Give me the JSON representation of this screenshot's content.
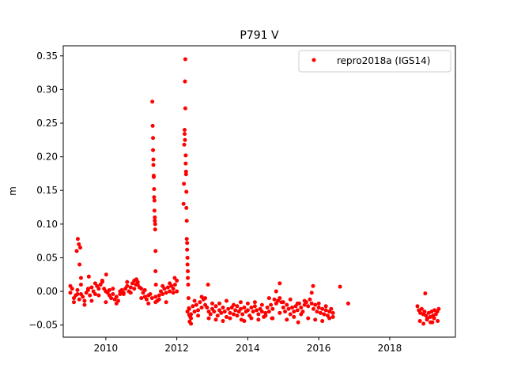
{
  "chart_data": {
    "type": "scatter",
    "title": "P791 V",
    "xlabel": "",
    "ylabel": "m",
    "xlim": [
      2008.8,
      2019.85
    ],
    "ylim": [
      -0.068,
      0.365
    ],
    "xticks": [
      2010,
      2012,
      2014,
      2016,
      2018
    ],
    "xtick_labels": [
      "2010",
      "2012",
      "2014",
      "2016",
      "2018"
    ],
    "yticks": [
      -0.05,
      0.0,
      0.05,
      0.1,
      0.15,
      0.2,
      0.25,
      0.3,
      0.35
    ],
    "ytick_labels": [
      "−0.05",
      "0.00",
      "0.05",
      "0.10",
      "0.15",
      "0.20",
      "0.25",
      "0.30",
      "0.35"
    ],
    "grid": false,
    "legend_position": "top-right",
    "series": [
      {
        "name": "repro2018a (IGS14)",
        "color": "#ff0000",
        "marker": "circle",
        "x": [
          2009.0,
          2009.05,
          2009.1,
          2009.15,
          2009.2,
          2009.25,
          2009.3,
          2009.35,
          2009.4,
          2009.45,
          2009.5,
          2009.55,
          2009.6,
          2009.65,
          2009.7,
          2009.75,
          2009.8,
          2009.85,
          2009.9,
          2009.95,
          2010.0,
          2010.05,
          2010.1,
          2010.15,
          2010.2,
          2010.25,
          2010.3,
          2010.35,
          2010.4,
          2010.45,
          2010.5,
          2010.55,
          2010.6,
          2010.65,
          2010.7,
          2010.75,
          2010.8,
          2010.85,
          2010.9,
          2010.95,
          2011.0,
          2011.05,
          2011.1,
          2011.15,
          2011.2,
          2011.25,
          2011.3,
          2011.4,
          2011.45,
          2011.5,
          2011.55,
          2011.6,
          2011.65,
          2011.7,
          2011.75,
          2011.8,
          2011.85,
          2011.9,
          2011.95,
          2012.0,
          2012.3,
          2012.35,
          2012.4,
          2012.45,
          2012.5,
          2012.55,
          2012.6,
          2012.65,
          2012.7,
          2012.75,
          2012.8,
          2012.85,
          2012.9,
          2012.95,
          2013.0,
          2013.05,
          2013.1,
          2013.15,
          2013.2,
          2013.25,
          2013.3,
          2013.35,
          2013.4,
          2013.45,
          2013.5,
          2013.55,
          2013.6,
          2013.65,
          2013.7,
          2013.75,
          2013.8,
          2013.85,
          2013.9,
          2013.95,
          2014.0,
          2014.05,
          2014.1,
          2014.15,
          2014.2,
          2014.25,
          2014.3,
          2014.35,
          2014.4,
          2014.45,
          2014.5,
          2014.55,
          2014.6,
          2014.65,
          2014.7,
          2014.75,
          2014.8,
          2014.85,
          2014.9,
          2014.95,
          2015.0,
          2015.05,
          2015.1,
          2015.15,
          2015.2,
          2015.25,
          2015.3,
          2015.35,
          2015.4,
          2015.45,
          2015.5,
          2015.55,
          2015.6,
          2015.65,
          2015.7,
          2015.75,
          2015.8,
          2015.85,
          2015.9,
          2015.95,
          2016.0,
          2016.05,
          2016.1,
          2016.15,
          2016.2,
          2016.25,
          2016.3,
          2016.35,
          2016.4,
          2016.83,
          2018.78,
          2018.82,
          2018.86,
          2018.9,
          2018.94,
          2018.98,
          2019.02,
          2019.06,
          2019.1,
          2019.14,
          2019.18,
          2019.22,
          2019.26,
          2019.3,
          2019.34,
          2019.38,
          2009.0,
          2009.1,
          2009.2,
          2009.3,
          2009.4,
          2009.5,
          2009.6,
          2009.7,
          2009.8,
          2009.9,
          2010.0,
          2010.1,
          2010.2,
          2010.3,
          2010.4,
          2010.5,
          2010.6,
          2010.7,
          2010.8,
          2010.9,
          2011.0,
          2011.1,
          2011.2,
          2011.4,
          2011.5,
          2011.6,
          2011.7,
          2011.8,
          2011.9,
          2012.0,
          2012.4,
          2012.5,
          2012.6,
          2012.7,
          2012.8,
          2012.9,
          2013.0,
          2013.1,
          2013.2,
          2013.3,
          2013.4,
          2013.5,
          2013.6,
          2013.7,
          2013.8,
          2013.9,
          2014.0,
          2014.1,
          2014.2,
          2014.3,
          2014.4,
          2014.5,
          2014.6,
          2014.7,
          2014.8,
          2014.9,
          2015.0,
          2015.1,
          2015.2,
          2015.3,
          2015.4,
          2015.5,
          2015.6,
          2015.7,
          2015.8,
          2015.9,
          2016.0,
          2016.1,
          2016.2,
          2016.3,
          2016.4,
          2018.85,
          2018.95,
          2019.05,
          2019.15,
          2019.25,
          2019.35,
          2009.18,
          2009.21,
          2009.24,
          2009.26,
          2009.28,
          2009.3,
          2011.31,
          2011.32,
          2011.33,
          2011.33,
          2011.34,
          2011.34,
          2011.35,
          2011.35,
          2011.36,
          2011.36,
          2011.37,
          2011.37,
          2011.38,
          2011.38,
          2011.39,
          2011.39,
          2011.4,
          2011.4,
          2011.41,
          2012.19,
          2012.2,
          2012.21,
          2012.22,
          2012.22,
          2012.23,
          2012.23,
          2012.24,
          2012.24,
          2012.25,
          2012.25,
          2012.26,
          2012.26,
          2012.27,
          2012.27,
          2012.28,
          2012.28,
          2012.29,
          2012.29,
          2012.3,
          2012.3,
          2012.31,
          2012.31,
          2012.32,
          2012.33,
          2012.34,
          2012.35,
          2012.36,
          2012.38,
          2009.52,
          2010.01,
          2010.86,
          2011.94,
          2012.88,
          2014.9,
          2015.84,
          2016.6,
          2019.0,
          2012.4,
          2013.82,
          2014.68,
          2015.42,
          2019.2
        ],
        "y": [
          -0.002,
          0.004,
          -0.01,
          -0.006,
          0.002,
          -0.012,
          -0.004,
          -0.008,
          -0.014,
          -0.002,
          0.004,
          -0.006,
          0.006,
          0.0,
          -0.004,
          0.008,
          0.004,
          0.01,
          0.016,
          0.004,
          0.0,
          -0.002,
          -0.006,
          -0.01,
          -0.004,
          -0.012,
          -0.008,
          -0.014,
          -0.004,
          0.002,
          -0.002,
          0.004,
          0.008,
          0.0,
          0.006,
          0.012,
          0.004,
          0.01,
          0.014,
          0.006,
          0.004,
          -0.002,
          -0.008,
          -0.012,
          -0.006,
          -0.004,
          -0.01,
          -0.008,
          -0.014,
          -0.006,
          0.0,
          -0.004,
          0.004,
          -0.002,
          0.006,
          0.0,
          0.008,
          0.004,
          0.01,
          0.0,
          -0.03,
          -0.026,
          -0.034,
          -0.022,
          -0.03,
          -0.02,
          -0.028,
          -0.016,
          -0.024,
          -0.012,
          -0.02,
          -0.024,
          -0.03,
          -0.034,
          -0.026,
          -0.03,
          -0.022,
          -0.036,
          -0.028,
          -0.032,
          -0.024,
          -0.03,
          -0.038,
          -0.026,
          -0.032,
          -0.024,
          -0.034,
          -0.028,
          -0.022,
          -0.03,
          -0.026,
          -0.034,
          -0.024,
          -0.03,
          -0.028,
          -0.036,
          -0.024,
          -0.03,
          -0.022,
          -0.028,
          -0.034,
          -0.026,
          -0.03,
          -0.038,
          -0.032,
          -0.024,
          -0.03,
          -0.02,
          -0.026,
          -0.012,
          -0.018,
          -0.014,
          -0.01,
          -0.016,
          -0.024,
          -0.03,
          -0.02,
          -0.026,
          -0.034,
          -0.024,
          -0.03,
          -0.022,
          -0.028,
          -0.018,
          -0.024,
          -0.03,
          -0.02,
          -0.016,
          -0.022,
          -0.012,
          -0.018,
          -0.026,
          -0.02,
          -0.03,
          -0.024,
          -0.032,
          -0.026,
          -0.034,
          -0.028,
          -0.036,
          -0.03,
          -0.026,
          -0.032,
          -0.018,
          -0.022,
          -0.028,
          -0.032,
          -0.026,
          -0.034,
          -0.03,
          -0.036,
          -0.04,
          -0.032,
          -0.038,
          -0.03,
          -0.036,
          -0.028,
          -0.034,
          -0.03,
          -0.026,
          0.008,
          -0.016,
          -0.004,
          0.01,
          -0.02,
          0.002,
          -0.014,
          0.012,
          -0.006,
          0.014,
          -0.016,
          0.002,
          0.004,
          -0.018,
          0.0,
          -0.004,
          0.014,
          -0.002,
          0.016,
          0.01,
          -0.01,
          0.002,
          -0.018,
          -0.016,
          -0.012,
          0.008,
          -0.016,
          0.012,
          -0.002,
          0.016,
          -0.04,
          -0.014,
          -0.036,
          -0.008,
          -0.01,
          -0.04,
          -0.018,
          -0.042,
          -0.018,
          -0.044,
          -0.014,
          -0.04,
          -0.02,
          -0.036,
          -0.016,
          -0.044,
          -0.018,
          -0.04,
          -0.016,
          -0.042,
          -0.02,
          -0.036,
          -0.01,
          -0.04,
          0.0,
          -0.032,
          -0.016,
          -0.042,
          -0.012,
          -0.038,
          -0.018,
          -0.034,
          -0.014,
          -0.04,
          -0.002,
          -0.042,
          -0.018,
          -0.044,
          -0.022,
          -0.04,
          -0.038,
          -0.044,
          -0.048,
          -0.042,
          -0.046,
          -0.04,
          -0.044,
          0.06,
          0.078,
          0.07,
          0.04,
          0.065,
          0.02,
          0.282,
          0.246,
          0.228,
          0.21,
          0.196,
          0.188,
          0.172,
          0.17,
          0.152,
          0.14,
          0.135,
          0.12,
          0.11,
          0.105,
          0.1,
          0.092,
          0.06,
          0.03,
          0.01,
          0.13,
          0.16,
          0.218,
          0.24,
          0.234,
          0.225,
          0.312,
          0.345,
          0.272,
          0.202,
          0.19,
          0.178,
          0.174,
          0.148,
          0.124,
          0.105,
          0.078,
          0.072,
          0.062,
          0.05,
          0.04,
          0.03,
          0.02,
          0.01,
          -0.01,
          -0.025,
          -0.035,
          -0.045,
          -0.038,
          0.022,
          0.025,
          0.018,
          0.02,
          0.01,
          0.012,
          0.008,
          0.007,
          -0.003,
          -0.048,
          -0.042,
          -0.04,
          -0.046,
          -0.046
        ]
      }
    ]
  }
}
